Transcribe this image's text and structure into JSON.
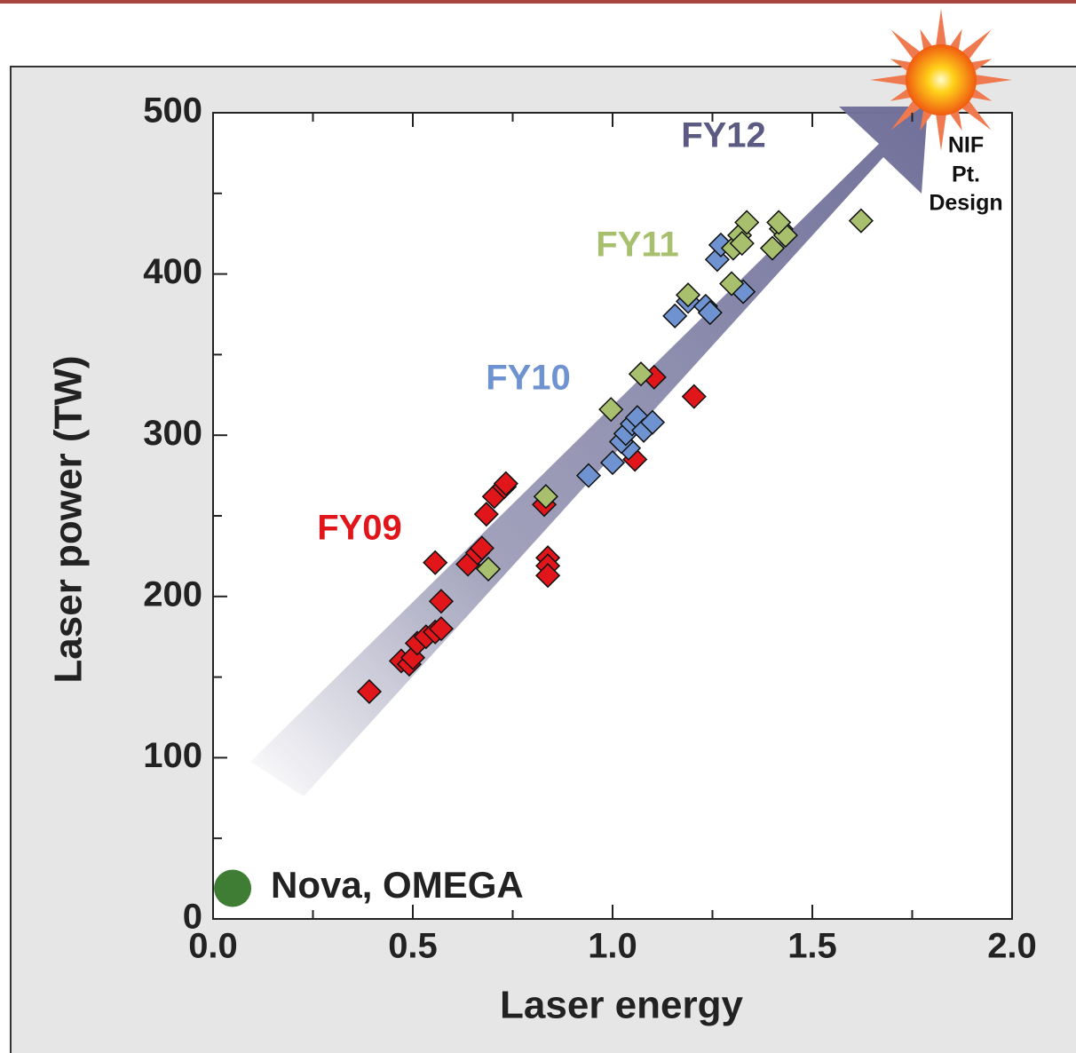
{
  "chart_data": {
    "type": "scatter",
    "xlabel": "Laser energy",
    "ylabel": "Laser power (TW)",
    "xlim": [
      0,
      2
    ],
    "ylim": [
      0,
      500
    ],
    "xticks": [
      {
        "value": 0,
        "label": "0.0"
      },
      {
        "value": 0.5,
        "label": "0.5"
      },
      {
        "value": 1,
        "label": "1.0"
      },
      {
        "value": 1.5,
        "label": "1.5"
      },
      {
        "value": 2,
        "label": "2.0"
      }
    ],
    "yticks": [
      0,
      100,
      200,
      300,
      400,
      500
    ],
    "x_minor_ticks": [
      0.25,
      0.75,
      1.25,
      1.75
    ],
    "y_minor_ticks": [
      50,
      150,
      250,
      350,
      450
    ],
    "annotations": {
      "arrow_label": "FY12",
      "target_label": [
        "NIF",
        "Pt.",
        "Design"
      ]
    },
    "series": [
      {
        "name": "FY09",
        "color": "#e0161b",
        "marker": "diamond",
        "x": [
          0.391,
          0.471,
          0.491,
          0.5,
          0.511,
          0.533,
          0.556,
          0.571,
          0.571,
          0.556,
          0.638,
          0.662,
          0.673,
          0.684,
          0.704,
          0.729,
          0.733,
          0.829,
          0.838,
          0.838,
          0.838,
          1.056,
          1.104,
          1.204
        ],
        "y": [
          141,
          160,
          158,
          162,
          171,
          175,
          178,
          180,
          197,
          221,
          220,
          227,
          230,
          251,
          262,
          268,
          270,
          257,
          224,
          219,
          213,
          285,
          336,
          324
        ]
      },
      {
        "name": "FY10",
        "color": "#6f93d0",
        "marker": "diamond",
        "x": [
          0.94,
          1.0,
          1.04,
          1.022,
          1.033,
          1.049,
          1.062,
          1.078,
          1.1,
          1.156,
          1.189,
          1.233,
          1.244,
          1.262,
          1.271,
          1.327
        ],
        "y": [
          275,
          283,
          292,
          296,
          301,
          307,
          311,
          303,
          308,
          374,
          383,
          380,
          376,
          409,
          418,
          389
        ]
      },
      {
        "name": "FY11",
        "color": "#a8bf6e",
        "marker": "diamond",
        "x": [
          0.689,
          0.833,
          0.996,
          1.071,
          1.189,
          1.298,
          1.302,
          1.318,
          1.324,
          1.336,
          1.4,
          1.422,
          1.433,
          1.416,
          1.622
        ],
        "y": [
          217,
          262,
          316,
          338,
          387,
          394,
          416,
          424,
          419,
          432,
          416,
          428,
          424,
          432,
          433
        ]
      },
      {
        "name": "Nova, OMEGA",
        "color": "#3f7d34",
        "marker": "circle",
        "x": [
          0.049
        ],
        "y": [
          19
        ]
      }
    ]
  }
}
